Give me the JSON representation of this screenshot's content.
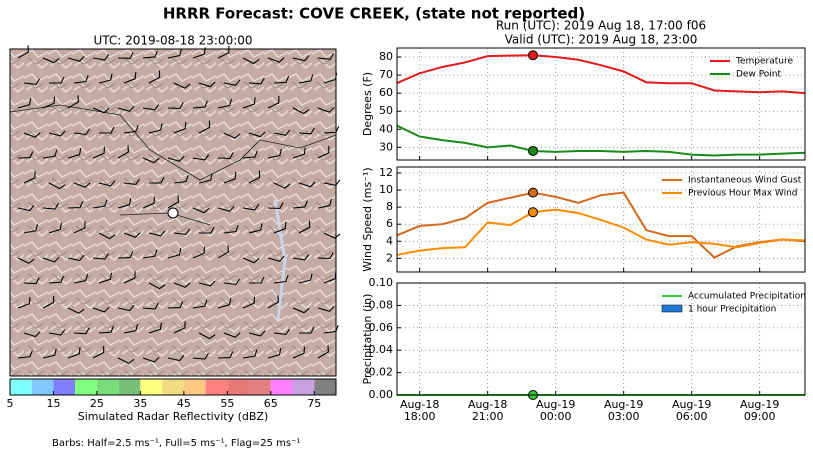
{
  "title": "HRRR Forecast: COVE CREEK, (state not reported)",
  "run": "Run (UTC): 2019 Aug 18, 17:00 f06",
  "valid": "Valid (UTC): 2019 Aug 18, 23:00",
  "map": {
    "title": "UTC: 2019-08-18 23:00:00",
    "colorbar": {
      "label": "Simulated Radar Reflectivity (dBZ)",
      "lim": [
        5,
        80
      ],
      "ticks": [
        5,
        15,
        25,
        35,
        45,
        55,
        65,
        75
      ],
      "colors": [
        "#80ffff",
        "#80c8ff",
        "#8080ff",
        "#80ff80",
        "#78dc78",
        "#78c078",
        "#ffff80",
        "#f0dc80",
        "#ffc880",
        "#ff8080",
        "#e87878",
        "#e08080",
        "#ff80ff",
        "#c8a0e0",
        "#808080"
      ]
    },
    "barbs_note": "Barbs: Half=2.5 ms⁻¹, Full=5 ms⁻¹, Flag=25 ms⁻¹"
  },
  "chart_data": [
    {
      "type": "line",
      "ylabel": "Degrees (F)",
      "grid": true,
      "legend": "upper right",
      "highlight": "Aug-18 23:00",
      "x": [
        "Aug-18 17:00",
        "Aug-18 18:00",
        "Aug-18 19:00",
        "Aug-18 20:00",
        "Aug-18 21:00",
        "Aug-18 22:00",
        "Aug-18 23:00",
        "Aug-19 00:00",
        "Aug-19 01:00",
        "Aug-19 02:00",
        "Aug-19 03:00",
        "Aug-19 04:00",
        "Aug-19 05:00",
        "Aug-19 06:00",
        "Aug-19 07:00",
        "Aug-19 08:00",
        "Aug-19 09:00",
        "Aug-19 10:00",
        "Aug-19 11:00"
      ],
      "xlim": [
        "Aug-18 17:00",
        "Aug-19 11:00"
      ],
      "xticks": [
        "Aug-18 18:00",
        "Aug-18 21:00",
        "Aug-19 00:00",
        "Aug-19 03:00",
        "Aug-19 06:00",
        "Aug-19 09:00"
      ],
      "ylim": [
        23,
        85
      ],
      "yticks": [
        30,
        40,
        50,
        60,
        70,
        80
      ],
      "series": [
        {
          "name": "Temperature",
          "color": "#e41a1c",
          "values": [
            65.6,
            71,
            74.5,
            77,
            80.5,
            80.8,
            81,
            80,
            78.5,
            75.5,
            72,
            66,
            65.5,
            65.5,
            61.5,
            61,
            60.5,
            61,
            60
          ]
        },
        {
          "name": "Dew Point",
          "color": "#1a8a1a",
          "values": [
            42,
            36,
            34,
            32.5,
            30,
            31,
            28,
            27.5,
            28,
            28,
            27.5,
            28,
            27.5,
            26,
            25.5,
            26,
            26,
            26.5,
            27
          ]
        }
      ]
    },
    {
      "type": "line",
      "ylabel": "Wind Speed (ms⁻¹)",
      "grid": true,
      "legend": "upper right",
      "highlight": "Aug-18 23:00",
      "x": [
        "Aug-18 17:00",
        "Aug-18 18:00",
        "Aug-18 19:00",
        "Aug-18 20:00",
        "Aug-18 21:00",
        "Aug-18 22:00",
        "Aug-18 23:00",
        "Aug-19 00:00",
        "Aug-19 01:00",
        "Aug-19 02:00",
        "Aug-19 03:00",
        "Aug-19 04:00",
        "Aug-19 05:00",
        "Aug-19 06:00",
        "Aug-19 07:00",
        "Aug-19 08:00",
        "Aug-19 09:00",
        "Aug-19 10:00",
        "Aug-19 11:00"
      ],
      "xlim": [
        "Aug-18 17:00",
        "Aug-19 11:00"
      ],
      "xticks": [
        "Aug-18 18:00",
        "Aug-18 21:00",
        "Aug-19 00:00",
        "Aug-19 03:00",
        "Aug-19 06:00",
        "Aug-19 09:00"
      ],
      "ylim": [
        0.4,
        12.7
      ],
      "yticks": [
        2,
        4,
        6,
        8,
        10,
        12
      ],
      "series": [
        {
          "name": "Instantaneous Wind Gust",
          "color": "#d2691e",
          "values": [
            4.7,
            5.8,
            6.0,
            6.7,
            8.5,
            9.1,
            9.7,
            9.2,
            8.5,
            9.4,
            9.7,
            5.3,
            4.6,
            4.6,
            2.1,
            3.4,
            3.9,
            4.2,
            4.0
          ]
        },
        {
          "name": "Previous Hour Max Wind",
          "color": "#ff8c00",
          "values": [
            2.4,
            2.9,
            3.2,
            3.3,
            6.2,
            5.9,
            7.4,
            7.7,
            7.3,
            6.5,
            5.6,
            4.2,
            3.6,
            3.9,
            3.7,
            3.3,
            3.8,
            4.2,
            4.1
          ]
        }
      ]
    },
    {
      "type": "line",
      "ylabel": "Precipitation (in)",
      "grid": true,
      "legend": "upper right",
      "highlight": "Aug-18 23:00",
      "x": [
        "Aug-18 17:00",
        "Aug-18 18:00",
        "Aug-18 19:00",
        "Aug-18 20:00",
        "Aug-18 21:00",
        "Aug-18 22:00",
        "Aug-18 23:00",
        "Aug-19 00:00",
        "Aug-19 01:00",
        "Aug-19 02:00",
        "Aug-19 03:00",
        "Aug-19 04:00",
        "Aug-19 05:00",
        "Aug-19 06:00",
        "Aug-19 07:00",
        "Aug-19 08:00",
        "Aug-19 09:00",
        "Aug-19 10:00",
        "Aug-19 11:00"
      ],
      "xlim": [
        "Aug-18 17:00",
        "Aug-19 11:00"
      ],
      "xticks": [
        "Aug-18 18:00",
        "Aug-18 21:00",
        "Aug-19 00:00",
        "Aug-19 03:00",
        "Aug-19 06:00",
        "Aug-19 09:00"
      ],
      "ylim": [
        0,
        0.1
      ],
      "yticks": [
        {
          "value": 0,
          "label": "0.00"
        },
        {
          "value": 0.02,
          "label": "0.02"
        },
        {
          "value": 0.04,
          "label": "0.04"
        },
        {
          "value": 0.06,
          "label": "0.06"
        },
        {
          "value": 0.08,
          "label": "0.08"
        },
        {
          "value": 0.1,
          "label": "0.10"
        }
      ],
      "series": [
        {
          "name": "Accumulated Precipitation",
          "color": "#33cc33",
          "values": [
            0,
            0,
            0,
            0,
            0,
            0,
            0,
            0,
            0,
            0,
            0,
            0,
            0,
            0,
            0,
            0,
            0,
            0,
            0
          ]
        },
        {
          "name": "1 hour Precipitation",
          "color": "#1f78d4",
          "kind": "bar",
          "values": [
            0,
            0,
            0,
            0,
            0,
            0,
            0,
            0,
            0,
            0,
            0,
            0,
            0,
            0,
            0,
            0,
            0,
            0,
            0
          ]
        }
      ]
    }
  ]
}
